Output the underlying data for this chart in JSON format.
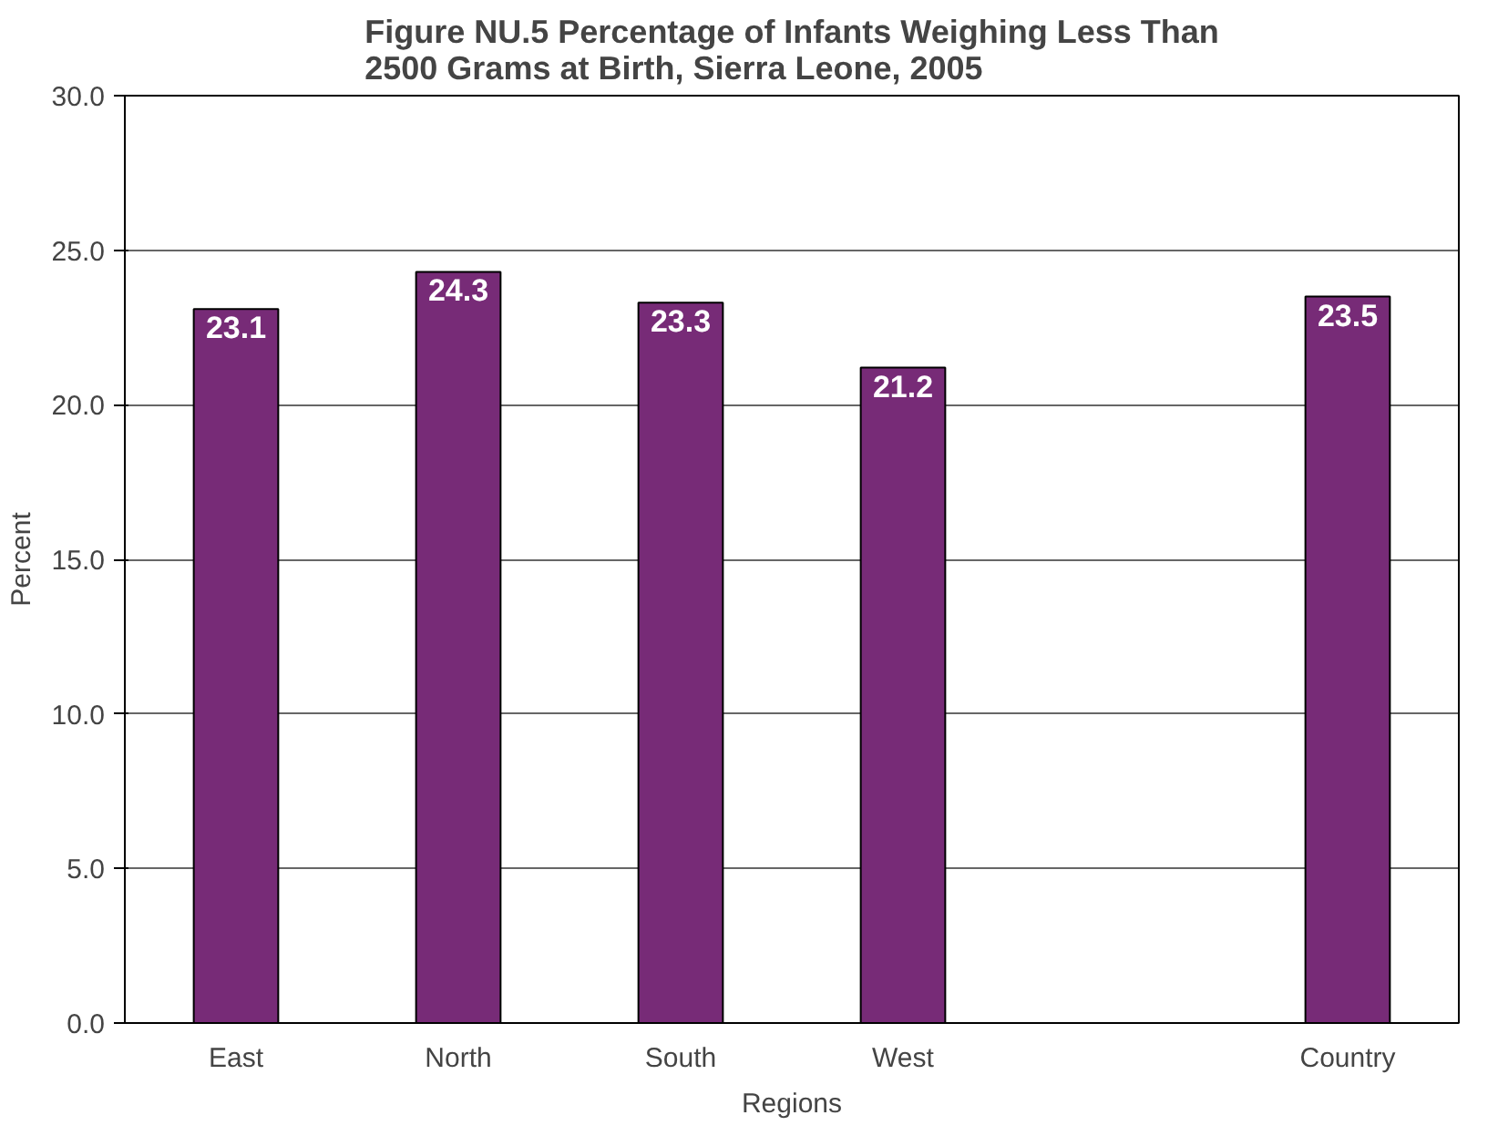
{
  "chart_data": {
    "type": "bar",
    "title": "Figure NU.5 Percentage of Infants Weighing Less Than\n2500 Grams at Birth, Sierra Leone, 2005",
    "xlabel": "Regions",
    "ylabel": "Percent",
    "categories": [
      "East",
      "North",
      "South",
      "West",
      null,
      "Country"
    ],
    "values": [
      23.1,
      24.3,
      23.3,
      21.2,
      null,
      23.5
    ],
    "color": "#772b77",
    "ylim": [
      0,
      30
    ],
    "yticks": [
      {
        "value": 0,
        "label": "0.0"
      },
      {
        "value": 5,
        "label": "5.0"
      },
      {
        "value": 10,
        "label": "10.0"
      },
      {
        "value": 15,
        "label": "15.0"
      },
      {
        "value": 20,
        "label": "20.0"
      },
      {
        "value": 25,
        "label": "25.0"
      },
      {
        "value": 30,
        "label": "30.0"
      }
    ],
    "grid": "y",
    "data_labels": true
  }
}
